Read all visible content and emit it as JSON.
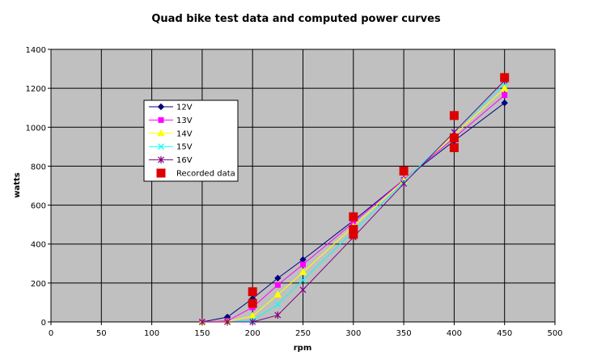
{
  "chart_data": {
    "type": "line",
    "title": "Quad bike test data and computed power curves",
    "xlabel": "rpm",
    "ylabel": "watts",
    "xlim": [
      0,
      500
    ],
    "ylim": [
      0,
      1400
    ],
    "x_ticks": [
      0,
      50,
      100,
      150,
      200,
      250,
      300,
      350,
      400,
      450,
      500
    ],
    "y_ticks": [
      0,
      200,
      400,
      600,
      800,
      1000,
      1200,
      1400
    ],
    "grid": true,
    "legend_position": "upper-left",
    "plot_background": "#c0c0c0",
    "series": [
      {
        "name": "12V",
        "color": "#000080",
        "marker": "diamond",
        "x": [
          150,
          175,
          200,
          225,
          250,
          300,
          350,
          400,
          450
        ],
        "y": [
          0,
          25,
          120,
          225,
          320,
          520,
          730,
          930,
          1125
        ]
      },
      {
        "name": "13V",
        "color": "#ff00ff",
        "marker": "square",
        "x": [
          150,
          175,
          200,
          225,
          250,
          300,
          350,
          400,
          450
        ],
        "y": [
          0,
          5,
          75,
          190,
          295,
          510,
          730,
          945,
          1165
        ]
      },
      {
        "name": "14V",
        "color": "#ffff00",
        "marker": "triangle",
        "x": [
          150,
          175,
          200,
          225,
          250,
          300,
          350,
          400,
          450
        ],
        "y": [
          0,
          2,
          30,
          140,
          255,
          490,
          725,
          960,
          1200
        ]
      },
      {
        "name": "15V",
        "color": "#00ffff",
        "marker": "x",
        "x": [
          150,
          175,
          200,
          225,
          250,
          300,
          350,
          400,
          450
        ],
        "y": [
          0,
          0,
          8,
          90,
          215,
          465,
          720,
          975,
          1225
        ]
      },
      {
        "name": "16V",
        "color": "#800080",
        "marker": "star",
        "x": [
          150,
          175,
          200,
          225,
          250,
          300,
          350,
          400,
          450
        ],
        "y": [
          0,
          0,
          0,
          35,
          165,
          435,
          710,
          975,
          1240
        ]
      },
      {
        "name": "Recorded data",
        "color": "#dd0000",
        "marker": "bigsquare",
        "line": false,
        "x": [
          200,
          200,
          300,
          300,
          300,
          350,
          400,
          400,
          400,
          450
        ],
        "y": [
          155,
          95,
          540,
          475,
          450,
          775,
          1060,
          945,
          895,
          1255
        ]
      }
    ]
  }
}
